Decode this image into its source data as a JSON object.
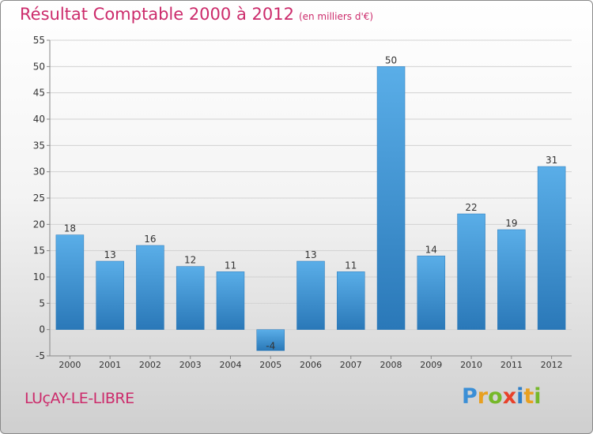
{
  "header": {
    "title": "Résultat Comptable 2000 à 2012",
    "subtitle": "(en milliers d'€)"
  },
  "footer": {
    "commune": "LUçAY-LE-LIBRE",
    "logo": "Proxiti"
  },
  "colors": {
    "bar_light": "#5aaee8",
    "bar_dark": "#2a78b8",
    "title": "#cc2b6b",
    "grid": "#d0d0d0",
    "axis": "#888888"
  },
  "chart_data": {
    "type": "bar",
    "title": "Résultat Comptable 2000 à 2012",
    "subtitle": "(en milliers d'€)",
    "categories": [
      "2000",
      "2001",
      "2002",
      "2003",
      "2004",
      "2005",
      "2006",
      "2007",
      "2008",
      "2009",
      "2010",
      "2011",
      "2012"
    ],
    "values": [
      18,
      13,
      16,
      12,
      11,
      -4,
      13,
      11,
      50,
      14,
      22,
      19,
      31
    ],
    "ylim": [
      -5,
      55
    ],
    "yticks": [
      -5,
      0,
      5,
      10,
      15,
      20,
      25,
      30,
      35,
      40,
      45,
      50,
      55
    ],
    "xlabel": "",
    "ylabel": "",
    "grid": true
  }
}
